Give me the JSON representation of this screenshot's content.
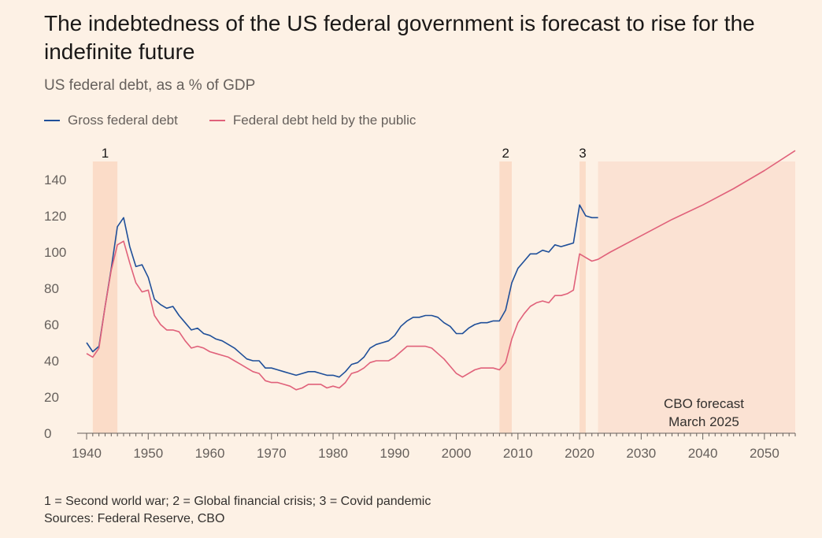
{
  "title": "The indebtedness of the US federal government is forecast to rise for the indefinite future",
  "subtitle": "US federal debt, as a % of GDP",
  "footnote": "1 = Second world war; 2 = Global financial crisis; 3 = Covid pandemic",
  "source": "Sources: Federal Reserve, CBO",
  "colors": {
    "gross": "#1f4f99",
    "public": "#e0617a",
    "shade": "#fbdcc8",
    "forecast": "#fbe2d3",
    "axis": "#66605c",
    "grid": "#e6d9ce"
  },
  "chart_data": {
    "type": "line",
    "title": "The indebtedness of the US federal government is forecast to rise for the indefinite future",
    "subtitle": "US federal debt, as a % of GDP",
    "xlim": [
      1940,
      2055
    ],
    "ylim": [
      0,
      150
    ],
    "x_ticks": [
      1940,
      1950,
      1960,
      1970,
      1980,
      1990,
      2000,
      2010,
      2020,
      2030,
      2040,
      2050
    ],
    "y_ticks": [
      0,
      20,
      40,
      60,
      80,
      100,
      120,
      140
    ],
    "grid": false,
    "legend_position": "top-left",
    "shaded_periods": [
      {
        "label": "1",
        "start": 1941,
        "end": 1945
      },
      {
        "label": "2",
        "start": 2007,
        "end": 2009
      },
      {
        "label": "3",
        "start": 2020,
        "end": 2021
      }
    ],
    "forecast_region": {
      "label_line1": "CBO forecast",
      "label_line2": "March 2025",
      "start": 2023,
      "end": 2055
    },
    "series": [
      {
        "name": "Gross federal debt",
        "x": [
          1940,
          1941,
          1942,
          1943,
          1944,
          1945,
          1946,
          1947,
          1948,
          1949,
          1950,
          1951,
          1952,
          1953,
          1954,
          1955,
          1956,
          1957,
          1958,
          1959,
          1960,
          1961,
          1962,
          1963,
          1964,
          1965,
          1966,
          1967,
          1968,
          1969,
          1970,
          1971,
          1972,
          1973,
          1974,
          1975,
          1976,
          1977,
          1978,
          1979,
          1980,
          1981,
          1982,
          1983,
          1984,
          1985,
          1986,
          1987,
          1988,
          1989,
          1990,
          1991,
          1992,
          1993,
          1994,
          1995,
          1996,
          1997,
          1998,
          1999,
          2000,
          2001,
          2002,
          2003,
          2004,
          2005,
          2006,
          2007,
          2008,
          2009,
          2010,
          2011,
          2012,
          2013,
          2014,
          2015,
          2016,
          2017,
          2018,
          2019,
          2020,
          2021,
          2022,
          2023
        ],
        "y": [
          50,
          45,
          48,
          70,
          91,
          114,
          119,
          103,
          92,
          93,
          86,
          74,
          71,
          69,
          70,
          65,
          61,
          57,
          58,
          55,
          54,
          52,
          51,
          49,
          47,
          44,
          41,
          40,
          40,
          36,
          36,
          35,
          34,
          33,
          32,
          33,
          34,
          34,
          33,
          32,
          32,
          31,
          34,
          38,
          39,
          42,
          47,
          49,
          50,
          51,
          54,
          59,
          62,
          64,
          64,
          65,
          65,
          64,
          61,
          59,
          55,
          55,
          58,
          60,
          61,
          61,
          62,
          62,
          68,
          83,
          91,
          95,
          99,
          99,
          101,
          100,
          104,
          103,
          104,
          105,
          126,
          120,
          119,
          119
        ]
      },
      {
        "name": "Federal debt held by the public",
        "x": [
          1940,
          1941,
          1942,
          1943,
          1944,
          1945,
          1946,
          1947,
          1948,
          1949,
          1950,
          1951,
          1952,
          1953,
          1954,
          1955,
          1956,
          1957,
          1958,
          1959,
          1960,
          1961,
          1962,
          1963,
          1964,
          1965,
          1966,
          1967,
          1968,
          1969,
          1970,
          1971,
          1972,
          1973,
          1974,
          1975,
          1976,
          1977,
          1978,
          1979,
          1980,
          1981,
          1982,
          1983,
          1984,
          1985,
          1986,
          1987,
          1988,
          1989,
          1990,
          1991,
          1992,
          1993,
          1994,
          1995,
          1996,
          1997,
          1998,
          1999,
          2000,
          2001,
          2002,
          2003,
          2004,
          2005,
          2006,
          2007,
          2008,
          2009,
          2010,
          2011,
          2012,
          2013,
          2014,
          2015,
          2016,
          2017,
          2018,
          2019,
          2020,
          2021,
          2022,
          2023,
          2024,
          2025,
          2030,
          2035,
          2040,
          2045,
          2050,
          2055
        ],
        "y": [
          44,
          42,
          47,
          70,
          90,
          104,
          106,
          94,
          83,
          78,
          79,
          65,
          60,
          57,
          57,
          56,
          51,
          47,
          48,
          47,
          45,
          44,
          43,
          42,
          40,
          38,
          36,
          34,
          33,
          29,
          28,
          28,
          27,
          26,
          24,
          25,
          27,
          27,
          27,
          25,
          26,
          25,
          28,
          33,
          34,
          36,
          39,
          40,
          40,
          40,
          42,
          45,
          48,
          48,
          48,
          48,
          47,
          44,
          41,
          37,
          33,
          31,
          33,
          35,
          36,
          36,
          36,
          35,
          39,
          52,
          61,
          66,
          70,
          72,
          73,
          72,
          76,
          76,
          77,
          79,
          99,
          97,
          95,
          96,
          98,
          100,
          109,
          118,
          126,
          135,
          145,
          156
        ]
      }
    ]
  }
}
